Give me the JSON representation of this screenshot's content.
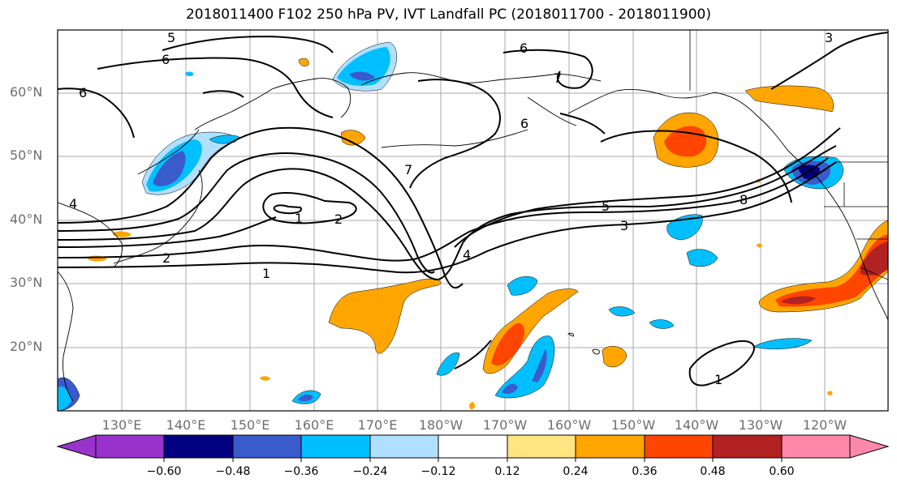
{
  "title": "2018011400 F102 250 hPa PV, IVT Landfall PC (2018011700 - 2018011900)",
  "map": {
    "lat_labels": [
      "60°N",
      "50°N",
      "40°N",
      "30°N",
      "20°N"
    ],
    "lon_labels": [
      "130°E",
      "140°E",
      "150°E",
      "160°E",
      "170°E",
      "180°W",
      "170°W",
      "160°W",
      "150°W",
      "140°W",
      "130°W",
      "120°W"
    ],
    "contour_labels": [
      "5",
      "6",
      "6",
      "6",
      "7",
      "6",
      "7",
      "1",
      "2",
      "1",
      "2",
      "4",
      "5",
      "3",
      "8",
      "1",
      "4",
      "3"
    ],
    "gridlines": true
  },
  "colorbar": {
    "tick_labels": [
      "−0.60",
      "−0.48",
      "−0.36",
      "−0.24",
      "−0.12",
      "0.12",
      "0.24",
      "0.36",
      "0.48",
      "0.60"
    ],
    "colors": [
      "#9933cc",
      "#000080",
      "#3a5bcc",
      "#00bfff",
      "#b0e0ff",
      "#ffffff",
      "#ffe680",
      "#ffa500",
      "#ff4500",
      "#b22222",
      "#ff88aa"
    ]
  }
}
